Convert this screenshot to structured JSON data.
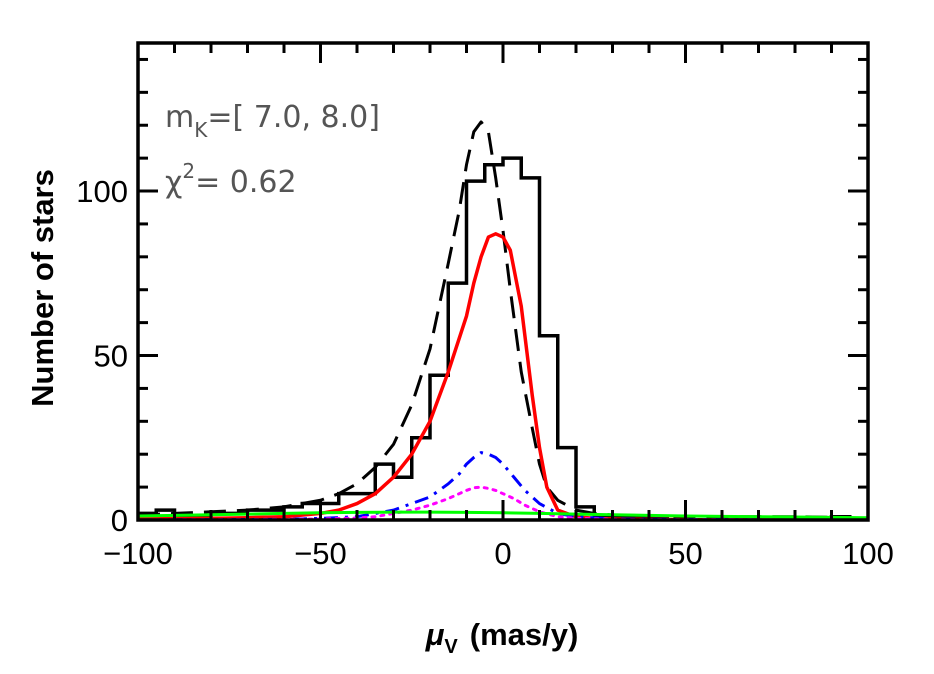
{
  "chart_data": {
    "type": "line",
    "title": "",
    "xlabel": "μ_V (mas/y)",
    "xlabel_parts": {
      "symbol": "μ",
      "subscript": "V",
      "unit": "(mas/y)"
    },
    "ylabel": "Number of stars",
    "xlim": [
      -100,
      100
    ],
    "ylim": [
      0,
      145
    ],
    "x_major_ticks": [
      -100,
      -50,
      0,
      50,
      100
    ],
    "x_tick_labels": [
      "−100",
      "−50",
      "0",
      "50",
      "100"
    ],
    "y_major_ticks": [
      0,
      50,
      100
    ],
    "y_tick_labels": [
      "0",
      "50",
      "100"
    ],
    "annotations": {
      "mag_range": {
        "prefix": "m",
        "subscript": "K",
        "text": "=[  7.0,  8.0]"
      },
      "chi2": {
        "prefix": "χ",
        "superscript": "2",
        "text": "=  0.62"
      }
    },
    "colors": {
      "histogram": "#000000",
      "total": "#000000",
      "red": "#ff0000",
      "blue": "#0000ff",
      "magenta": "#ff00ff",
      "green": "#00ff00"
    },
    "histogram": {
      "edges": [
        -100,
        -95,
        -90,
        -85,
        -80,
        -75,
        -70,
        -65,
        -60,
        -55,
        -50,
        -45,
        -40,
        -35,
        -30,
        -25,
        -20,
        -15,
        -10,
        -5,
        0,
        5,
        10,
        15,
        20,
        25,
        30,
        35,
        40,
        45,
        50,
        55,
        60,
        65,
        70,
        75,
        80,
        85,
        90,
        95,
        100
      ],
      "counts": [
        2,
        3,
        1,
        1,
        2,
        2,
        3,
        3,
        4,
        5,
        5,
        8,
        8,
        17,
        13,
        25,
        44,
        72,
        103,
        108,
        110,
        104,
        56,
        22,
        4,
        1,
        1,
        1,
        1,
        0,
        0,
        0,
        0,
        0,
        0,
        0,
        0,
        0,
        1,
        0
      ]
    },
    "series": [
      {
        "style": "dashed",
        "color": "#000000",
        "width": 3,
        "x": [
          -100,
          -90,
          -80,
          -70,
          -60,
          -50,
          -45,
          -40,
          -35,
          -30,
          -25,
          -20,
          -15,
          -12,
          -10,
          -8,
          -6,
          -4,
          -2,
          0,
          2,
          5,
          8,
          10,
          12,
          15,
          20,
          25,
          30,
          40,
          50,
          60,
          70,
          80,
          90,
          100
        ],
        "y": [
          1.5,
          2,
          2.5,
          3,
          4,
          6,
          8,
          11,
          16,
          23,
          35,
          52,
          78,
          94,
          108,
          118,
          121,
          118,
          104,
          88,
          70,
          45,
          28,
          17,
          10,
          6,
          3,
          2,
          1.5,
          1.2,
          1,
          1,
          1,
          1,
          0.8,
          0.5
        ]
      },
      {
        "style": "solid",
        "color": "#ff0000",
        "width": 3.5,
        "x": [
          -100,
          -90,
          -80,
          -70,
          -60,
          -50,
          -45,
          -40,
          -35,
          -30,
          -25,
          -20,
          -15,
          -10,
          -8,
          -6,
          -4,
          -2,
          0,
          2,
          5,
          8,
          10,
          12,
          15,
          20,
          25,
          30,
          40,
          50,
          60,
          70,
          80,
          90,
          100
        ],
        "y": [
          0.3,
          0.4,
          0.5,
          0.7,
          1,
          2,
          3,
          5,
          8,
          13,
          20,
          30,
          45,
          62,
          72,
          80,
          86,
          87,
          86,
          82,
          65,
          38,
          22,
          10,
          3,
          1,
          0.5,
          0.3,
          0.2,
          0.1,
          0,
          0,
          0,
          0,
          0
        ]
      },
      {
        "style": "dashdot",
        "color": "#0000ff",
        "width": 3,
        "x": [
          -100,
          -80,
          -60,
          -50,
          -40,
          -35,
          -30,
          -25,
          -20,
          -15,
          -12,
          -10,
          -8,
          -6,
          -4,
          -2,
          0,
          3,
          6,
          10,
          15,
          20,
          30,
          40,
          60,
          80,
          100
        ],
        "y": [
          0,
          0.1,
          0.2,
          0.5,
          1,
          2,
          3,
          5,
          7,
          11,
          14,
          17,
          19,
          20.5,
          20,
          19,
          17,
          13,
          9,
          5,
          2,
          1,
          0.3,
          0.2,
          0.1,
          0,
          0
        ]
      },
      {
        "style": "dotted",
        "color": "#ff00ff",
        "width": 3,
        "x": [
          -100,
          -80,
          -60,
          -50,
          -40,
          -35,
          -30,
          -25,
          -20,
          -15,
          -12,
          -10,
          -8,
          -6,
          -4,
          -2,
          0,
          3,
          6,
          10,
          15,
          20,
          30,
          40,
          60,
          80,
          100
        ],
        "y": [
          0,
          0.1,
          0.2,
          0.3,
          0.6,
          1,
          2,
          3,
          4.5,
          6.5,
          8,
          9,
          9.8,
          10,
          9.6,
          9,
          8,
          6.5,
          4.5,
          2.5,
          1,
          0.5,
          0.2,
          0.1,
          0.1,
          0,
          0
        ]
      },
      {
        "style": "solid",
        "color": "#00ff00",
        "width": 3,
        "x": [
          -100,
          -90,
          -80,
          -70,
          -60,
          -50,
          -40,
          -30,
          -20,
          -10,
          0,
          10,
          20,
          30,
          40,
          50,
          60,
          70,
          80,
          90,
          100
        ],
        "y": [
          1.2,
          1.4,
          1.6,
          1.8,
          2,
          2.2,
          2.3,
          2.4,
          2.4,
          2.3,
          2.2,
          2.0,
          1.8,
          1.6,
          1.4,
          1.2,
          1.1,
          1.0,
          0.9,
          0.8,
          0.7
        ]
      }
    ]
  }
}
